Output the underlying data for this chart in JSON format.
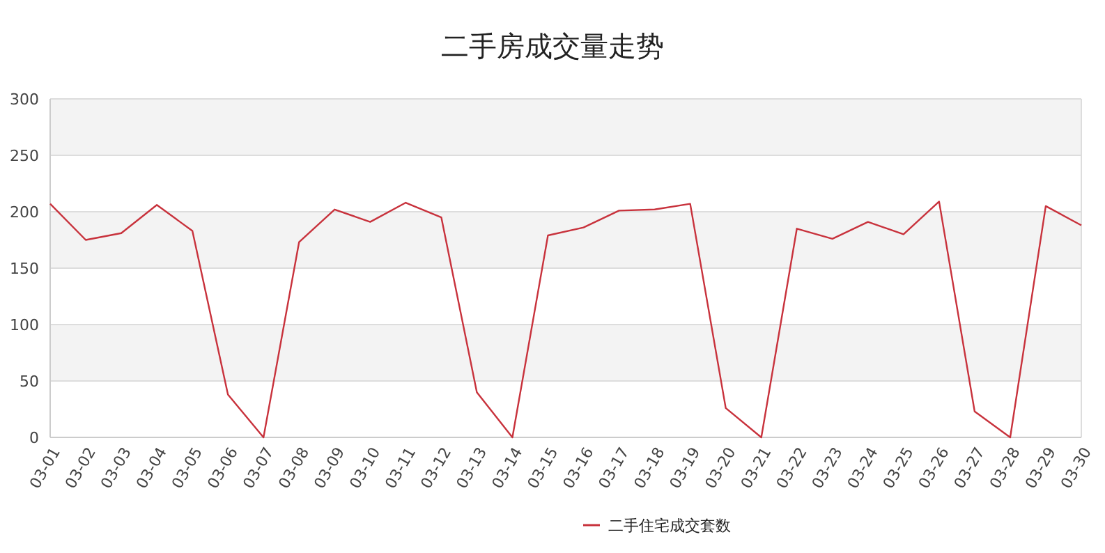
{
  "chart_data": {
    "type": "line",
    "title": "二手房成交量走势",
    "categories": [
      "03-01",
      "03-02",
      "03-03",
      "03-04",
      "03-05",
      "03-06",
      "03-07",
      "03-08",
      "03-09",
      "03-10",
      "03-11",
      "03-12",
      "03-13",
      "03-14",
      "03-15",
      "03-16",
      "03-17",
      "03-18",
      "03-19",
      "03-20",
      "03-21",
      "03-22",
      "03-23",
      "03-24",
      "03-25",
      "03-26",
      "03-27",
      "03-28",
      "03-29",
      "03-30"
    ],
    "series": [
      {
        "name": "二手住宅成交套数",
        "color": "#c8323c",
        "values": [
          207,
          175,
          181,
          206,
          183,
          38,
          0,
          173,
          202,
          191,
          208,
          195,
          40,
          0,
          179,
          186,
          201,
          202,
          207,
          26,
          0,
          185,
          176,
          191,
          180,
          209,
          23,
          0,
          205,
          188
        ]
      }
    ],
    "ylim": [
      0,
      300
    ],
    "yticks": [
      0,
      50,
      100,
      150,
      200,
      250,
      300
    ],
    "grid": "y",
    "legend": "bottom",
    "marker": "none",
    "line_style": "solid"
  }
}
